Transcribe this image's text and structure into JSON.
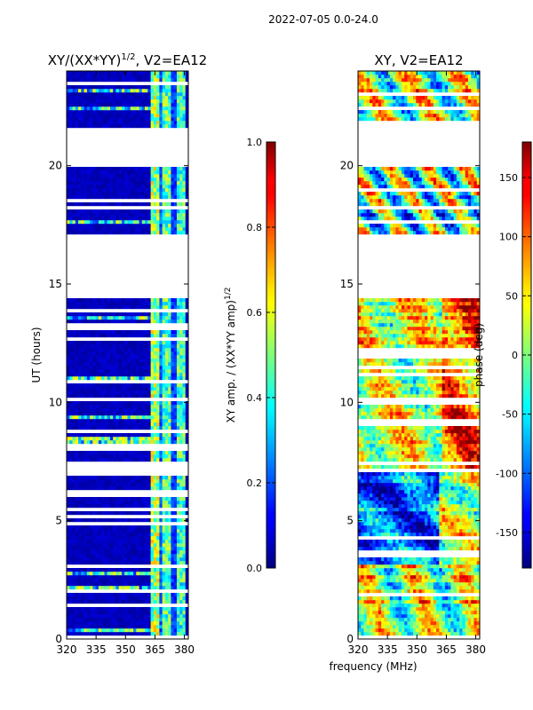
{
  "suptitle": "2022-07-05 0.0-24.0",
  "chart_data": [
    {
      "type": "heatmap",
      "id": "amp",
      "title_main": "XY/(XX*YY)",
      "title_exp": "1/2",
      "title_tail": ", V2=EA12",
      "xlabel": "",
      "ylabel": "UT (hours)",
      "xlim": [
        320,
        382
      ],
      "ylim": [
        0,
        24
      ],
      "x_ticks": [
        "320",
        "335",
        "350",
        "365",
        "380"
      ],
      "x_tick_values": [
        320,
        335,
        350,
        365,
        380
      ],
      "y_ticks": [
        "0",
        "5",
        "10",
        "15",
        "20"
      ],
      "y_tick_values": [
        0,
        5,
        10,
        15,
        20
      ],
      "data_gaps_hours": [
        [
          0.0,
          0.15
        ],
        [
          6.85,
          7.35
        ],
        [
          14.3,
          17.0
        ],
        [
          19.9,
          21.55
        ],
        [
          23.95,
          24.0
        ]
      ],
      "colorbar": {
        "label_main": "XY amp. / (XX*YY amp)",
        "label_exp": "1/2",
        "range": [
          0.0,
          1.0
        ],
        "ticks": [
          "0.0",
          "0.2",
          "0.4",
          "0.6",
          "0.8",
          "1.0"
        ],
        "tick_values": [
          0.0,
          0.2,
          0.4,
          0.6,
          0.8,
          1.0
        ]
      }
    },
    {
      "type": "heatmap",
      "id": "phase",
      "title": "XY, V2=EA12",
      "xlabel": "frequency (MHz)",
      "ylabel": "",
      "xlim": [
        320,
        382
      ],
      "ylim": [
        0,
        24
      ],
      "x_ticks": [
        "320",
        "335",
        "350",
        "365",
        "380"
      ],
      "x_tick_values": [
        320,
        335,
        350,
        365,
        380
      ],
      "y_ticks": [
        "0",
        "5",
        "10",
        "15",
        "20"
      ],
      "y_tick_values": [
        0,
        5,
        10,
        15,
        20
      ],
      "data_gaps_hours": [
        [
          0.0,
          0.1
        ],
        [
          6.95,
          7.2
        ],
        [
          14.3,
          17.0
        ],
        [
          19.9,
          21.6
        ],
        [
          23.95,
          24.0
        ]
      ],
      "colorbar": {
        "label": "phase (deg)",
        "range": [
          -180,
          180
        ],
        "ticks": [
          "-150",
          "-100",
          "-50",
          "0",
          "50",
          "100",
          "150"
        ],
        "tick_values": [
          -150,
          -100,
          -50,
          0,
          50,
          100,
          150
        ]
      }
    }
  ]
}
